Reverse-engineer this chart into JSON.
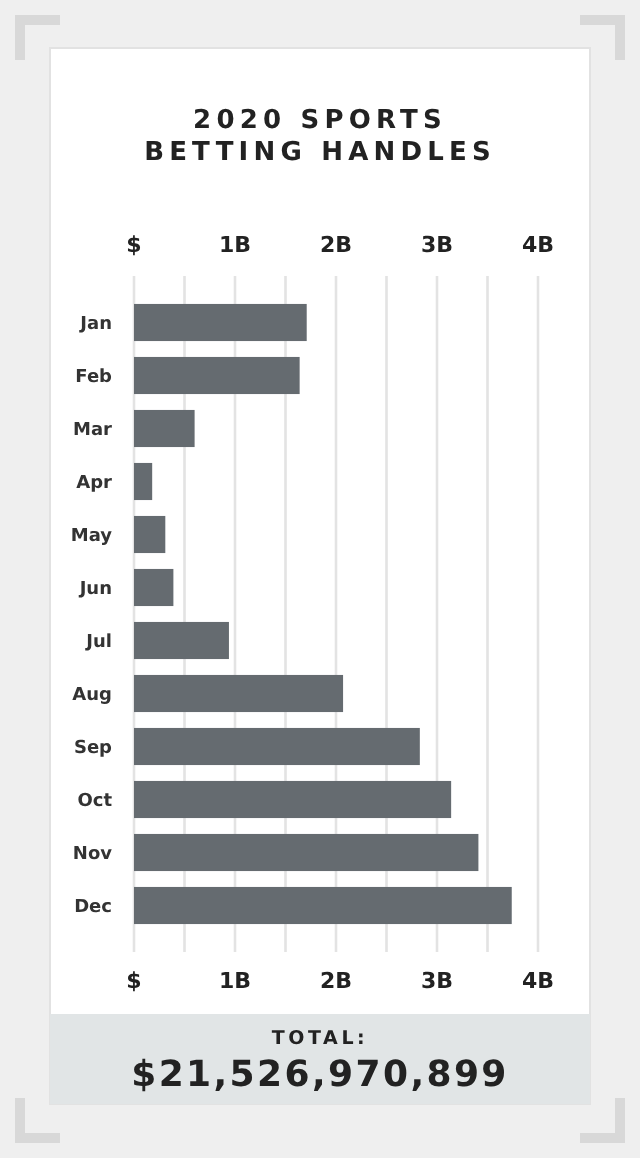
{
  "chart_data": {
    "type": "bar",
    "orientation": "horizontal",
    "title": "2020 SPORTS BETTING HANDLES",
    "categories": [
      "Jan",
      "Feb",
      "Mar",
      "Apr",
      "May",
      "Jun",
      "Jul",
      "Aug",
      "Sep",
      "Oct",
      "Nov",
      "Dec"
    ],
    "values": [
      1.71,
      1.64,
      0.6,
      0.18,
      0.31,
      0.39,
      0.94,
      2.07,
      2.83,
      3.14,
      3.41,
      3.74
    ],
    "color": "#656b70",
    "xlim": [
      0,
      4
    ],
    "xticks": [
      {
        "value": 0,
        "label": "$"
      },
      {
        "value": 0.5,
        "label": null
      },
      {
        "value": 1,
        "label": "1B"
      },
      {
        "value": 1.5,
        "label": null
      },
      {
        "value": 2,
        "label": "2B"
      },
      {
        "value": 2.5,
        "label": null
      },
      {
        "value": 3,
        "label": "3B"
      },
      {
        "value": 3.5,
        "label": null
      },
      {
        "value": 4,
        "label": "4B"
      }
    ],
    "x2lim": [
      0,
      4
    ],
    "x2ticks": [
      {
        "value": 0,
        "label": "$"
      },
      {
        "value": 1,
        "label": "1B"
      },
      {
        "value": 2,
        "label": "2B"
      },
      {
        "value": 3,
        "label": "3B"
      },
      {
        "value": 4,
        "label": "4B"
      }
    ],
    "grid": "x",
    "annotations": [
      "TOTAL:",
      "$21,526,970,899"
    ]
  }
}
